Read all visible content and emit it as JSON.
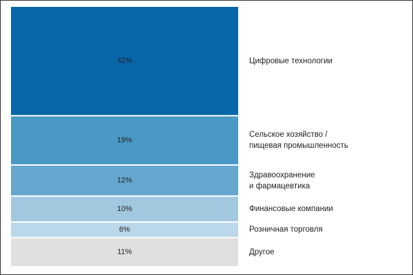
{
  "chart_data": {
    "type": "stacked-column",
    "categories": [
      "Цифровые технологии",
      "Сельское хозяйство /\nпищевая промышленность",
      "Здравоохранение\nи фармацевтика",
      "Финансовые компании",
      "Розничная торговля",
      "Другое"
    ],
    "values": [
      42,
      19,
      12,
      10,
      6,
      11
    ],
    "value_labels": [
      "42%",
      "19%",
      "12%",
      "10%",
      "6%",
      "11%"
    ],
    "colors": [
      "#0767a9",
      "#4a98c5",
      "#66a7cf",
      "#a2c8e0",
      "#bbd7ea",
      "#e0e0e0"
    ]
  }
}
